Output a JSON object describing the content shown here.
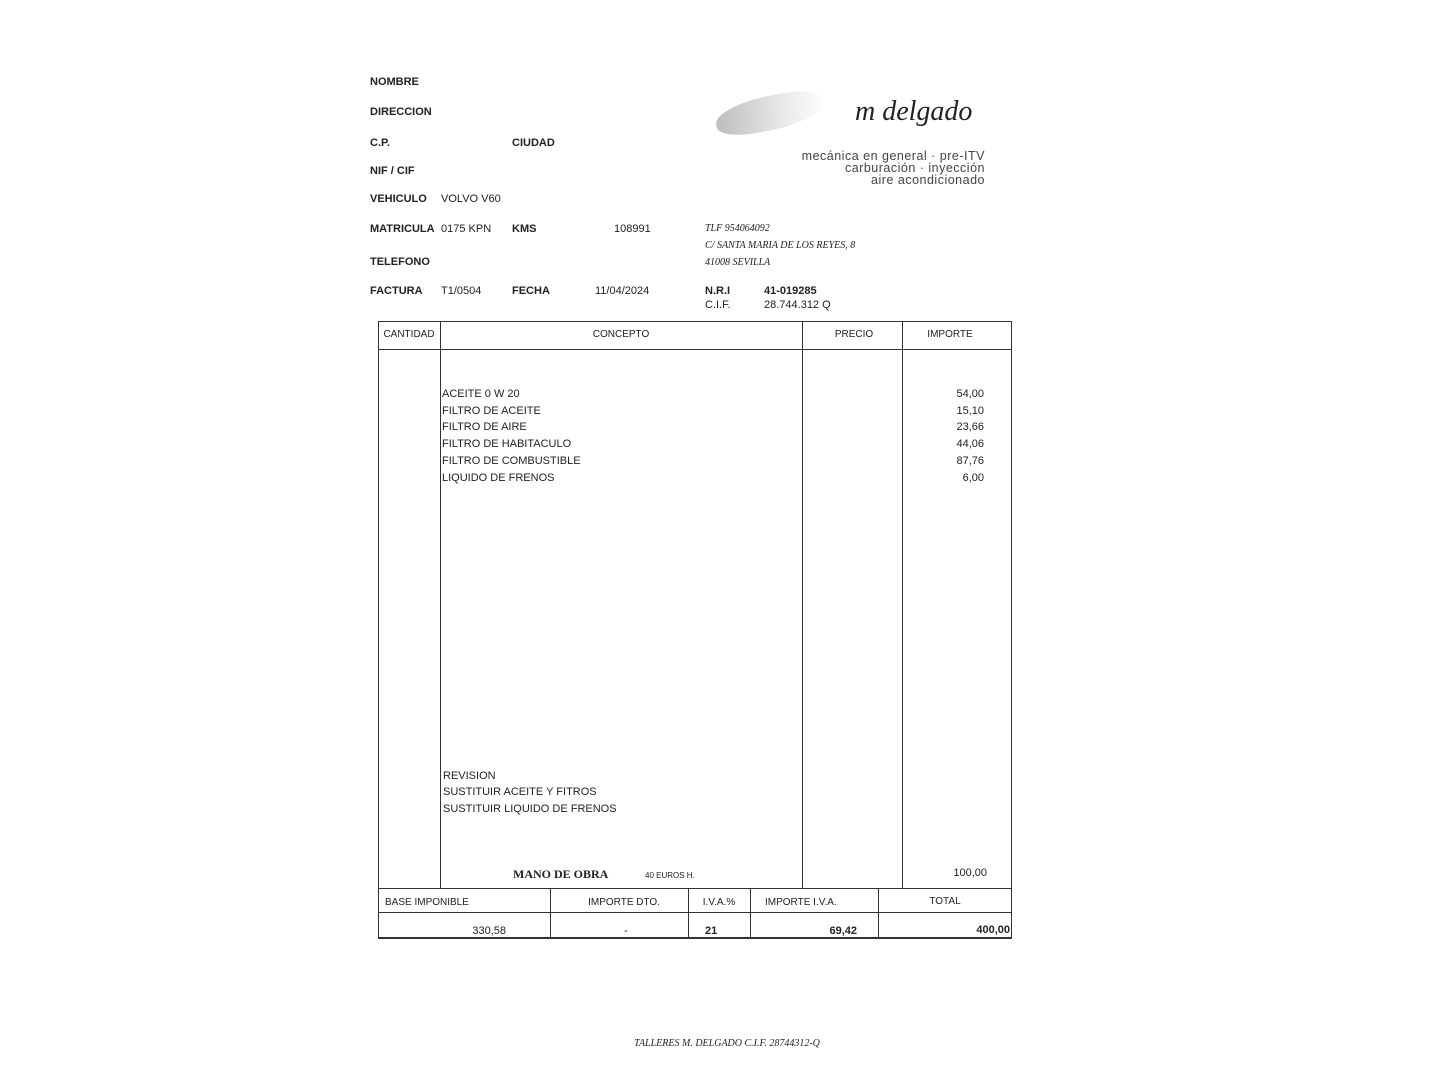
{
  "customer": {
    "nombre_label": "NOMBRE",
    "direccion_label": "DIRECCION",
    "cp_label": "C.P.",
    "ciudad_label": "CIUDAD",
    "nif_label": "NIF / CIF",
    "vehiculo_label": "VEHICULO",
    "vehiculo": "VOLVO V60",
    "matricula_label": "MATRICULA",
    "matricula": "0175 KPN",
    "kms_label": "KMS",
    "kms": "108991",
    "telefono_label": "TELEFONO",
    "factura_label": "FACTURA",
    "factura": "T1/0504",
    "fecha_label": "FECHA",
    "fecha": "11/04/2024"
  },
  "company": {
    "logo": "m delgado",
    "tagline": [
      "mecánica en general · pre-ITV",
      "carburación · inyección",
      "aire acondicionado"
    ],
    "tlf": "TLF 954064092",
    "address": "C/ SANTA MARIA DE LOS REYES, 8",
    "city": "41008 SEVILLA",
    "nri_label": "N.R.I",
    "nri": "41-019285",
    "cif_label": "C.I.F.",
    "cif": "28.744.312 Q"
  },
  "table": {
    "headers": [
      "CANTIDAD",
      "CONCEPTO",
      "PRECIO",
      "IMPORTE"
    ],
    "items": [
      {
        "concepto": "ACEITE 0 W 20",
        "importe": "54,00"
      },
      {
        "concepto": "FILTRO DE ACEITE",
        "importe": "15,10"
      },
      {
        "concepto": "FILTRO DE AIRE",
        "importe": "23,66"
      },
      {
        "concepto": "FILTRO DE HABITACULO",
        "importe": "44,06"
      },
      {
        "concepto": "FILTRO DE COMBUSTIBLE",
        "importe": "87,76"
      },
      {
        "concepto": "LIQUIDO DE FRENOS",
        "importe": "6,00"
      }
    ],
    "notes": [
      "REVISION",
      "SUSTITUIR ACEITE Y FITROS",
      "SUSTITUIR LIQUIDO DE FRENOS"
    ],
    "labor_label": "MANO DE OBRA",
    "labor_rate": "40 EUROS H.",
    "labor_importe": "100,00"
  },
  "totals": {
    "headers": [
      "BASE IMPONIBLE",
      "IMPORTE DTO.",
      "I.V.A.%",
      "IMPORTE I.V.A.",
      "TOTAL"
    ],
    "values": [
      "330,58",
      "-",
      "21",
      "69,42",
      "400,00"
    ]
  },
  "footer": "TALLERES M. DELGADO C.I.F. 28744312-Q"
}
